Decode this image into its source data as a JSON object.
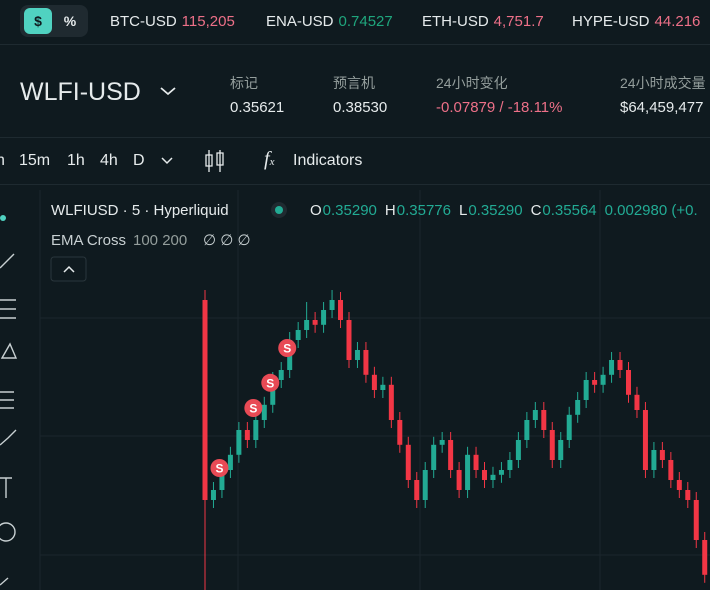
{
  "ticker": {
    "currency_buttons": [
      "$",
      "%"
    ],
    "items": [
      {
        "symbol": "BTC-USD",
        "price": "115,205",
        "color": "#ed7088"
      },
      {
        "symbol": "ENA-USD",
        "price": "0.74527",
        "color": "#1fa67d"
      },
      {
        "symbol": "ETH-USD",
        "price": "4,751.7",
        "color": "#ed7088"
      },
      {
        "symbol": "HYPE-USD",
        "price": "44.216",
        "color": "#ed7088"
      }
    ]
  },
  "market": {
    "name": "WLFI-USD",
    "stats": [
      {
        "label": "标记",
        "value": "0.35621"
      },
      {
        "label": "预言机",
        "value": "0.38530"
      },
      {
        "label": "24小时变化",
        "value": "-0.07879 / -18.11%",
        "color": "#ed7088"
      },
      {
        "label": "24小时成交量",
        "value": "$64,459,477"
      }
    ]
  },
  "toolbar": {
    "intervals": [
      "h",
      "15m",
      "1h",
      "4h",
      "D"
    ],
    "indicators": "Indicators"
  },
  "legend": {
    "title": "WLFIUSD · 5 · Hyperliquid",
    "ohlc": [
      {
        "key": "O",
        "value": "0.35290"
      },
      {
        "key": "H",
        "value": "0.35776"
      },
      {
        "key": "L",
        "value": "0.35290"
      },
      {
        "key": "C",
        "value": "0.35564"
      }
    ],
    "change": "0.002980 (+0.",
    "indicator": "EMA Cross",
    "indicator_params": "100 200",
    "indicator_values": "∅ ∅ ∅"
  },
  "chart_data": {
    "type": "candlestick",
    "up_color": "#22ab94",
    "down_color": "#f23645",
    "signal_color": "#e84a55",
    "ylim": [
      0.3525,
      0.45
    ],
    "open": [
      0.425,
      0.375,
      0.3775,
      0.3825,
      0.3863,
      0.3925,
      0.39,
      0.395,
      0.3988,
      0.405,
      0.4075,
      0.415,
      0.4175,
      0.42,
      0.4188,
      0.4225,
      0.425,
      0.42,
      0.41,
      0.4125,
      0.4063,
      0.4025,
      0.4038,
      0.395,
      0.3888,
      0.38,
      0.375,
      0.3825,
      0.3888,
      0.39,
      0.3825,
      0.3775,
      0.3863,
      0.3825,
      0.38,
      0.3813,
      0.3825,
      0.385,
      0.39,
      0.395,
      0.3975,
      0.3925,
      0.385,
      0.39,
      0.3963,
      0.4,
      0.405,
      0.4038,
      0.4063,
      0.41,
      0.4075,
      0.4013,
      0.3975,
      0.3825,
      0.3875,
      0.385,
      0.38,
      0.3775,
      0.375,
      0.365
    ],
    "high": [
      0.4275,
      0.3795,
      0.3845,
      0.3883,
      0.3945,
      0.3945,
      0.397,
      0.4008,
      0.407,
      0.4095,
      0.417,
      0.4195,
      0.4245,
      0.422,
      0.4245,
      0.4275,
      0.427,
      0.422,
      0.4145,
      0.4145,
      0.4083,
      0.4058,
      0.4058,
      0.397,
      0.3908,
      0.382,
      0.3845,
      0.3908,
      0.392,
      0.392,
      0.3845,
      0.3883,
      0.3883,
      0.3845,
      0.3833,
      0.3845,
      0.387,
      0.392,
      0.397,
      0.3995,
      0.3995,
      0.3945,
      0.392,
      0.3983,
      0.402,
      0.407,
      0.407,
      0.4083,
      0.412,
      0.412,
      0.4095,
      0.4033,
      0.3995,
      0.3895,
      0.3895,
      0.387,
      0.382,
      0.3795,
      0.377,
      0.367
    ],
    "low": [
      0.3525,
      0.373,
      0.3755,
      0.3805,
      0.3843,
      0.388,
      0.388,
      0.393,
      0.3968,
      0.403,
      0.4055,
      0.413,
      0.4155,
      0.4168,
      0.4168,
      0.4205,
      0.418,
      0.408,
      0.408,
      0.4043,
      0.4005,
      0.4005,
      0.393,
      0.3868,
      0.378,
      0.373,
      0.373,
      0.3805,
      0.3868,
      0.3805,
      0.3755,
      0.3755,
      0.3805,
      0.378,
      0.378,
      0.3793,
      0.3805,
      0.383,
      0.388,
      0.393,
      0.3905,
      0.383,
      0.383,
      0.388,
      0.3943,
      0.398,
      0.4018,
      0.4018,
      0.4043,
      0.4055,
      0.3993,
      0.3955,
      0.3805,
      0.3805,
      0.383,
      0.378,
      0.3755,
      0.373,
      0.363,
      0.3543
    ],
    "close": [
      0.375,
      0.3775,
      0.3825,
      0.3863,
      0.3925,
      0.39,
      0.395,
      0.3988,
      0.405,
      0.4075,
      0.415,
      0.4175,
      0.42,
      0.4188,
      0.4225,
      0.425,
      0.42,
      0.41,
      0.4125,
      0.4063,
      0.4025,
      0.4038,
      0.395,
      0.3888,
      0.38,
      0.375,
      0.3825,
      0.3888,
      0.39,
      0.3825,
      0.3775,
      0.3863,
      0.3825,
      0.38,
      0.3813,
      0.3825,
      0.385,
      0.39,
      0.395,
      0.3975,
      0.3925,
      0.385,
      0.39,
      0.3963,
      0.4,
      0.405,
      0.4038,
      0.4063,
      0.41,
      0.4075,
      0.4013,
      0.3975,
      0.3825,
      0.3875,
      0.385,
      0.38,
      0.3775,
      0.375,
      0.365,
      0.3563
    ],
    "signals": [
      {
        "label": "S",
        "candle": 1
      },
      {
        "label": "S",
        "candle": 5
      },
      {
        "label": "S",
        "candle": 7
      },
      {
        "label": "S",
        "candle": 9
      }
    ]
  }
}
